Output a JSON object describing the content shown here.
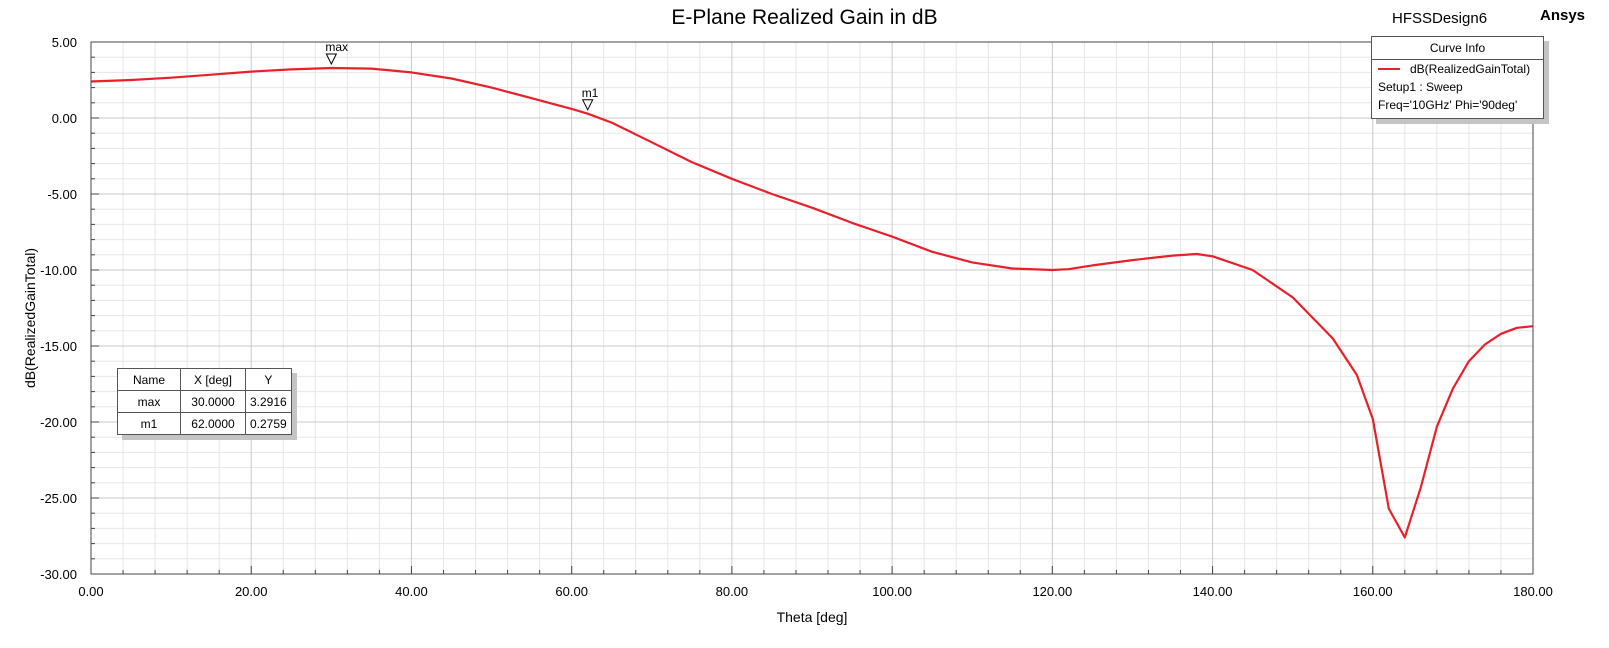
{
  "header": {
    "design_name": "HFSSDesign6",
    "brand": "Ansys"
  },
  "legend": {
    "header": "Curve Info",
    "series_name": "dB(RealizedGainTotal)",
    "setup": "Setup1 : Sweep",
    "params": "Freq='10GHz' Phi='90deg'"
  },
  "markers_table": {
    "headers": [
      "Name",
      "X [deg]",
      "Y"
    ],
    "rows": [
      {
        "name": "max",
        "x": "30.0000",
        "y": "3.2916"
      },
      {
        "name": "m1",
        "x": "62.0000",
        "y": "0.2759"
      }
    ]
  },
  "colors": {
    "series": "#e8202a",
    "grid_major": "#c8c8c8",
    "grid_minor": "#e6e6e6"
  },
  "chart_data": {
    "type": "line",
    "title": "E-Plane Realized Gain in dB",
    "xlabel": "Theta [deg]",
    "ylabel": "dB(RealizedGainTotal)",
    "xlim": [
      0,
      180
    ],
    "ylim": [
      -30,
      5
    ],
    "x_ticks": [
      0,
      20,
      40,
      60,
      80,
      100,
      120,
      140,
      160,
      180
    ],
    "x_tick_labels": [
      "0.00",
      "20.00",
      "40.00",
      "60.00",
      "80.00",
      "100.00",
      "120.00",
      "140.00",
      "160.00",
      "180.00"
    ],
    "y_ticks": [
      5,
      0,
      -5,
      -10,
      -15,
      -20,
      -25,
      -30
    ],
    "y_tick_labels": [
      "5.00",
      "0.00",
      "-5.00",
      "-10.00",
      "-15.00",
      "-20.00",
      "-25.00",
      "-30.00"
    ],
    "grid": true,
    "legend_position": "top-right",
    "series": [
      {
        "name": "dB(RealizedGainTotal)",
        "x": [
          0,
          5,
          10,
          15,
          20,
          25,
          30,
          35,
          40,
          45,
          50,
          55,
          60,
          62,
          65,
          70,
          75,
          80,
          85,
          90,
          95,
          100,
          105,
          110,
          115,
          120,
          122,
          125,
          130,
          135,
          138,
          140,
          145,
          150,
          155,
          158,
          160,
          162,
          164,
          166,
          168,
          170,
          172,
          174,
          176,
          178,
          180
        ],
        "y": [
          2.4,
          2.5,
          2.65,
          2.85,
          3.05,
          3.2,
          3.29,
          3.25,
          3.0,
          2.6,
          2.0,
          1.3,
          0.6,
          0.28,
          -0.3,
          -1.6,
          -2.9,
          -4.0,
          -5.0,
          -5.9,
          -6.9,
          -7.8,
          -8.8,
          -9.5,
          -9.9,
          -10.0,
          -9.95,
          -9.7,
          -9.35,
          -9.05,
          -8.95,
          -9.1,
          -10.0,
          -11.8,
          -14.5,
          -16.9,
          -19.8,
          -25.7,
          -27.6,
          -24.3,
          -20.3,
          -17.8,
          -16.0,
          -14.9,
          -14.2,
          -13.8,
          -13.7
        ]
      }
    ],
    "markers": [
      {
        "name": "max",
        "x": 30,
        "y": 3.2916
      },
      {
        "name": "m1",
        "x": 62,
        "y": 0.2759
      }
    ]
  }
}
